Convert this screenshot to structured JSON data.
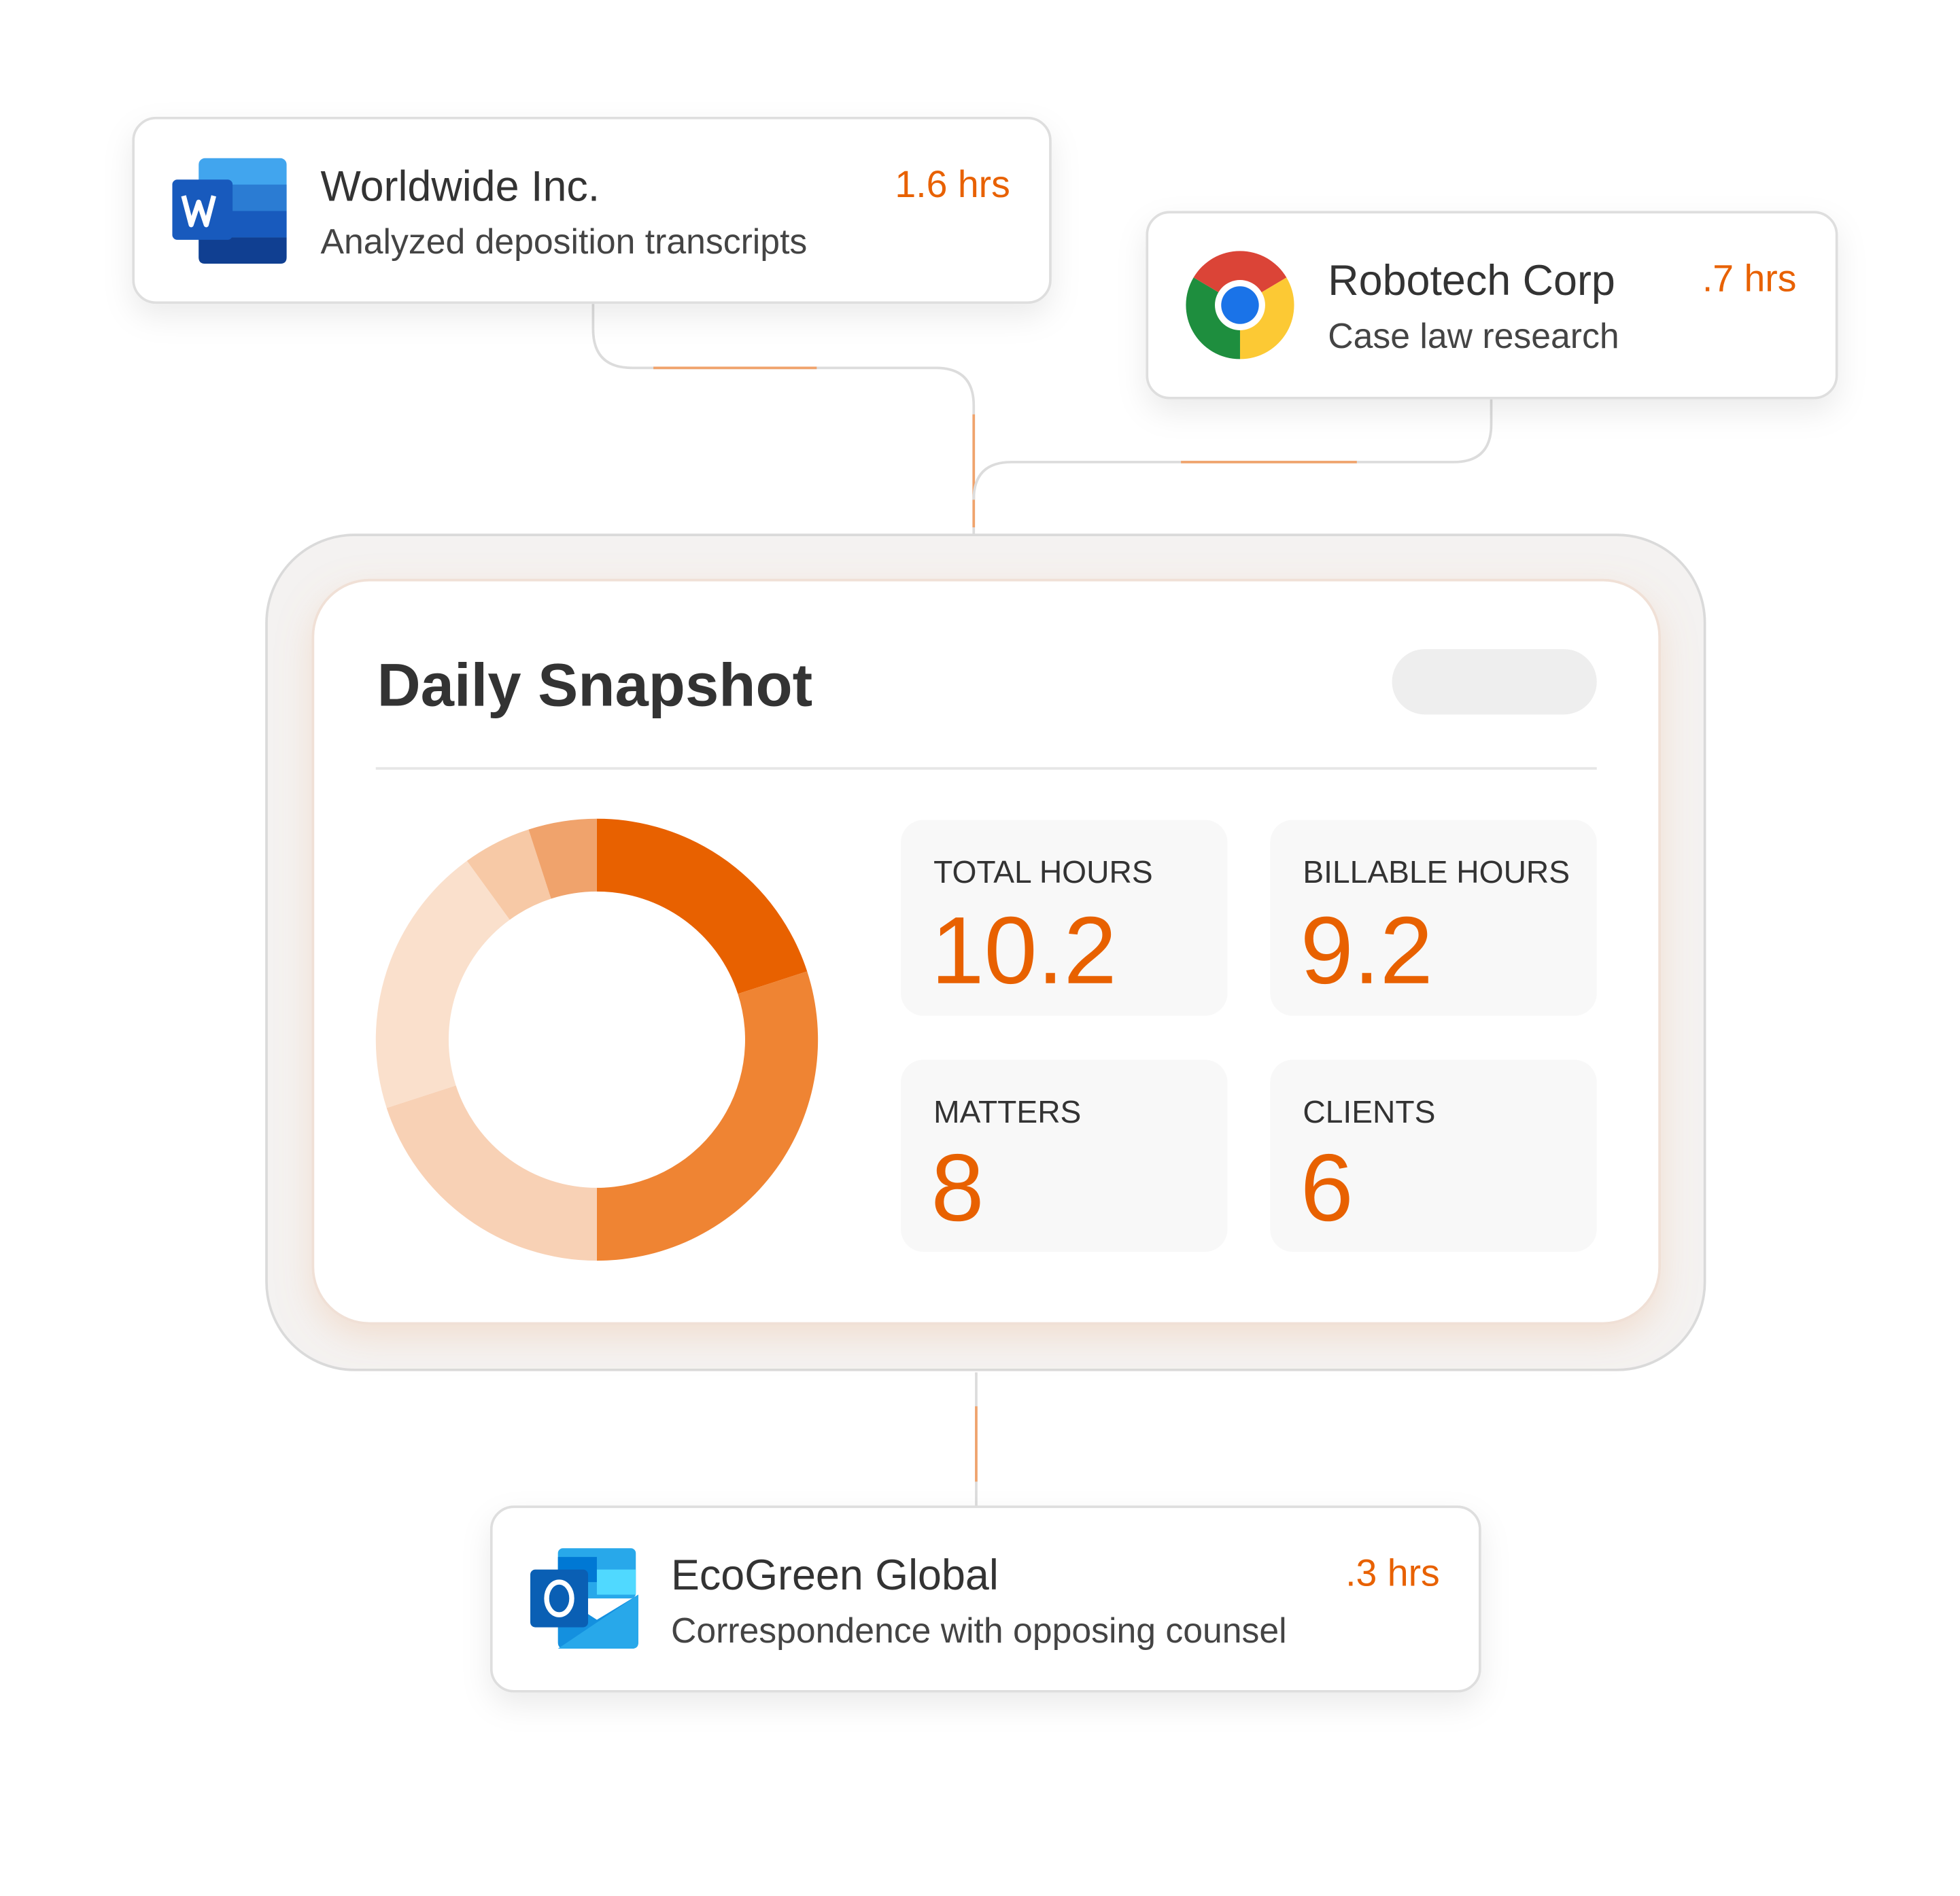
{
  "cards": [
    {
      "company": "Worldwide Inc.",
      "task": "Analyzed deposition transcripts",
      "hours": "1.6 hrs"
    },
    {
      "company": "Robotech Corp",
      "task": "Case law research",
      "hours": ".7 hrs"
    },
    {
      "company": "EcoGreen Global",
      "task": "Correspondence with opposing counsel",
      "hours": ".3 hrs"
    }
  ],
  "snapshot": {
    "title": "Daily Snapshot",
    "donut": {
      "values": [
        20,
        30,
        20,
        20,
        5,
        5
      ],
      "colors": [
        "#e86100",
        "#ef8433",
        "#f8d1b5",
        "#fae0cc",
        "#f7c9a6",
        "#f0a36c"
      ]
    },
    "stats": [
      {
        "label": "TOTAL HOURS",
        "value": "10.2"
      },
      {
        "label": "BILLABLE HOURS",
        "value": "9.2"
      },
      {
        "label": "MATTERS",
        "value": "8"
      },
      {
        "label": "CLIENTS",
        "value": "6"
      }
    ]
  }
}
